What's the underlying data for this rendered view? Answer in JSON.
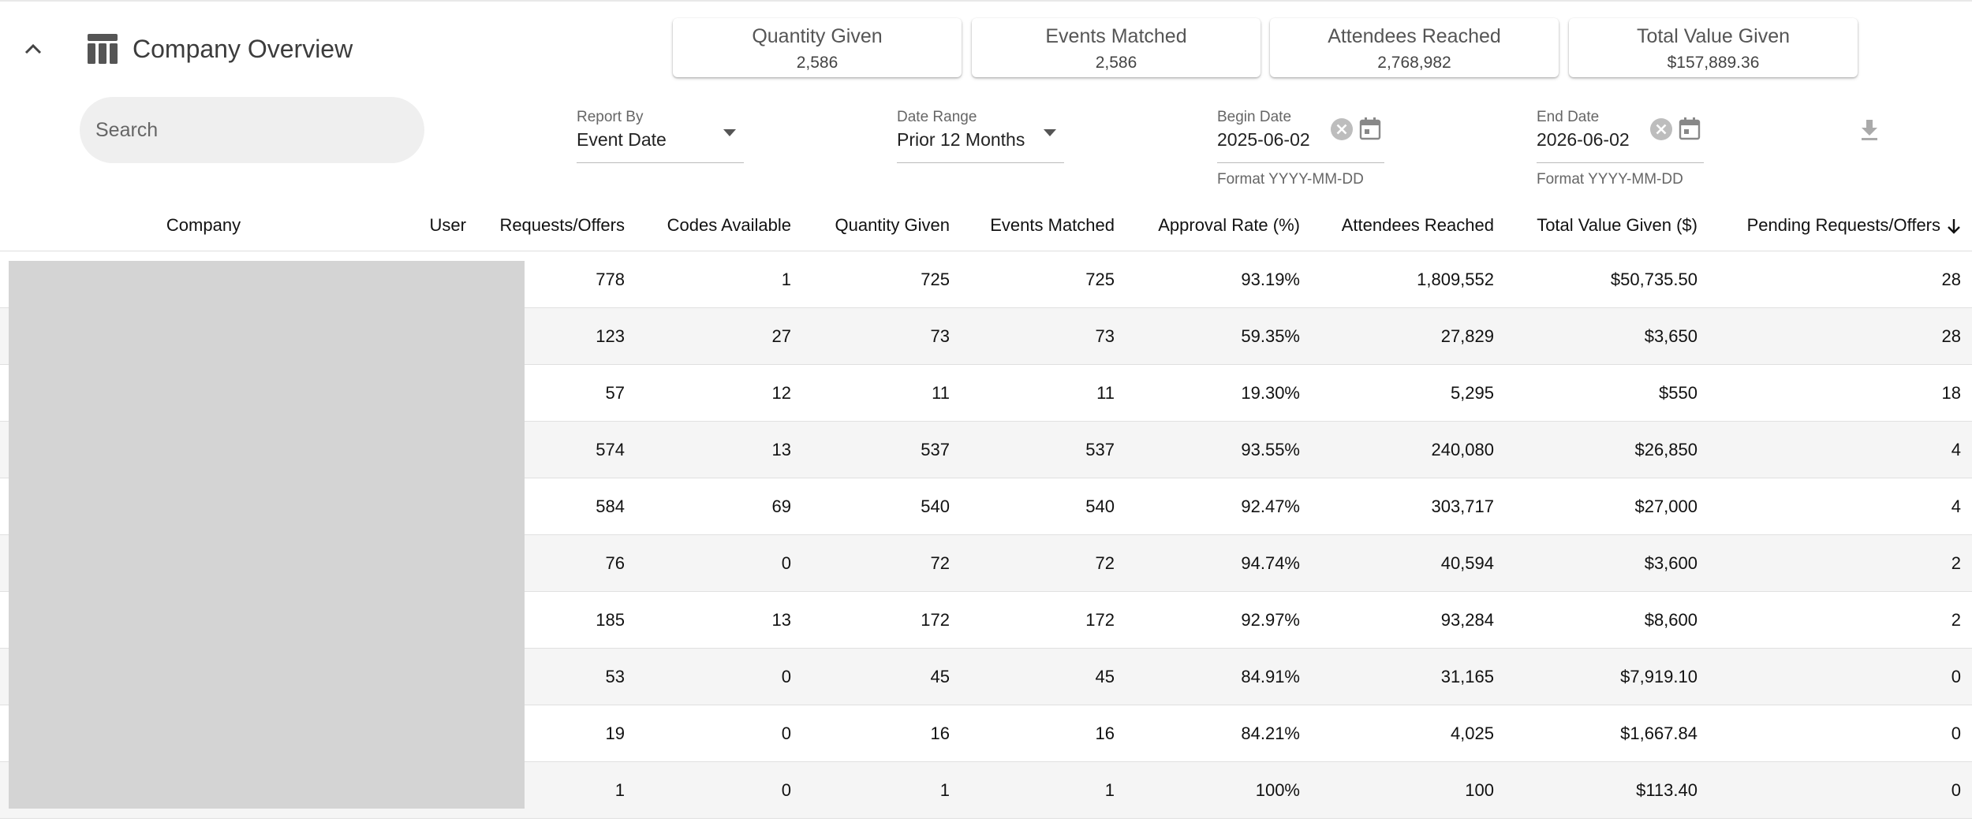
{
  "header": {
    "title": "Company Overview",
    "collapse_icon": "chevron-up-icon",
    "title_icon": "table-icon"
  },
  "summary_cards": [
    {
      "label": "Quantity Given",
      "value": "2,586"
    },
    {
      "label": "Events Matched",
      "value": "2,586"
    },
    {
      "label": "Attendees Reached",
      "value": "2,768,982"
    },
    {
      "label": "Total Value Given",
      "value": "$157,889.36"
    }
  ],
  "search": {
    "placeholder": "Search",
    "value": ""
  },
  "filters": {
    "report_by": {
      "label": "Report By",
      "value": "Event Date"
    },
    "date_range": {
      "label": "Date Range",
      "value": "Prior 12 Months"
    },
    "begin_date": {
      "label": "Begin Date",
      "value": "2025-06-02",
      "helper": "Format YYYY-MM-DD"
    },
    "end_date": {
      "label": "End Date",
      "value": "2026-06-02",
      "helper": "Format YYYY-MM-DD"
    }
  },
  "icons": {
    "clear": "clear-icon",
    "calendar": "calendar-icon",
    "download": "download-icon",
    "sort": "arrow-down-icon"
  },
  "colors": {
    "row_alt": "#f5f5f5",
    "search_bg": "#efefef",
    "redaction": "#d4d4d4"
  },
  "table": {
    "columns": [
      "Company",
      "User",
      "Requests/Offers",
      "Codes Available",
      "Quantity Given",
      "Events Matched",
      "Approval Rate (%)",
      "Attendees Reached",
      "Total Value Given ($)",
      "Pending Requests/Offers"
    ],
    "rows": [
      [
        "",
        "",
        "778",
        "1",
        "725",
        "725",
        "93.19%",
        "1,809,552",
        "$50,735.50",
        "28"
      ],
      [
        "",
        "",
        "123",
        "27",
        "73",
        "73",
        "59.35%",
        "27,829",
        "$3,650",
        "28"
      ],
      [
        "",
        "",
        "57",
        "12",
        "11",
        "11",
        "19.30%",
        "5,295",
        "$550",
        "18"
      ],
      [
        "",
        "",
        "574",
        "13",
        "537",
        "537",
        "93.55%",
        "240,080",
        "$26,850",
        "4"
      ],
      [
        "",
        "",
        "584",
        "69",
        "540",
        "540",
        "92.47%",
        "303,717",
        "$27,000",
        "4"
      ],
      [
        "",
        "",
        "76",
        "0",
        "72",
        "72",
        "94.74%",
        "40,594",
        "$3,600",
        "2"
      ],
      [
        "",
        "",
        "185",
        "13",
        "172",
        "172",
        "92.97%",
        "93,284",
        "$8,600",
        "2"
      ],
      [
        "",
        "",
        "53",
        "0",
        "45",
        "45",
        "84.91%",
        "31,165",
        "$7,919.10",
        "0"
      ],
      [
        "",
        "",
        "19",
        "0",
        "16",
        "16",
        "84.21%",
        "4,025",
        "$1,667.84",
        "0"
      ],
      [
        "",
        "",
        "1",
        "0",
        "1",
        "1",
        "100%",
        "100",
        "$113.40",
        "0"
      ]
    ]
  }
}
